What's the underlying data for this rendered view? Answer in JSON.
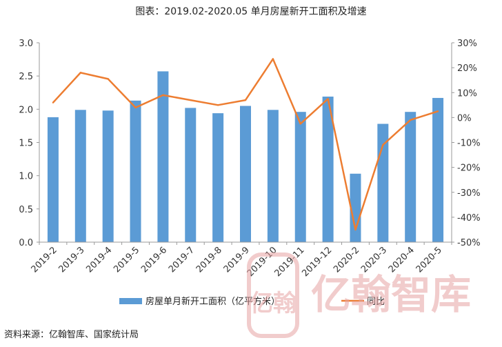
{
  "title": "图表：2019.02-2020.05 单月房屋新开工面积及增速",
  "source": "资料来源：亿翰智库、国家统计局",
  "watermark": {
    "text": "亿翰智库",
    "seal_text": "亿翰"
  },
  "colors": {
    "bar": "#5B9BD5",
    "line": "#ED7D31",
    "axis": "#999999",
    "watermark": "#e7a3a3"
  },
  "chart_data": {
    "type": "bar",
    "categories": [
      "2019-2",
      "2019-3",
      "2019-4",
      "2019-5",
      "2019-6",
      "2019-7",
      "2019-8",
      "2019-9",
      "2019-10",
      "2019-11",
      "2019-12",
      "2020-2",
      "2020-3",
      "2020-4",
      "2020-5"
    ],
    "series": [
      {
        "name": "房屋单月新开工面积（亿平方米）",
        "type": "bar",
        "axis": "left",
        "values": [
          1.88,
          1.99,
          1.98,
          2.13,
          2.57,
          2.02,
          1.94,
          2.05,
          1.99,
          1.96,
          2.19,
          1.03,
          1.78,
          1.96,
          2.17
        ]
      },
      {
        "name": "同比",
        "type": "line",
        "axis": "right",
        "values": [
          6,
          18,
          15.5,
          4,
          9,
          7,
          5,
          7,
          23.5,
          -2.5,
          7.5,
          -45,
          -11,
          -1,
          2.5
        ]
      }
    ],
    "y_left": {
      "min": 0,
      "max": 3,
      "ticks": [
        "0.0",
        "0.5",
        "1.0",
        "1.5",
        "2.0",
        "2.5",
        "3.0"
      ]
    },
    "y_right": {
      "min": -50,
      "max": 30,
      "ticks": [
        "-50%",
        "-40%",
        "-30%",
        "-20%",
        "-10%",
        "0%",
        "10%",
        "20%",
        "30%"
      ]
    },
    "grid": false,
    "legend_position": "bottom"
  }
}
